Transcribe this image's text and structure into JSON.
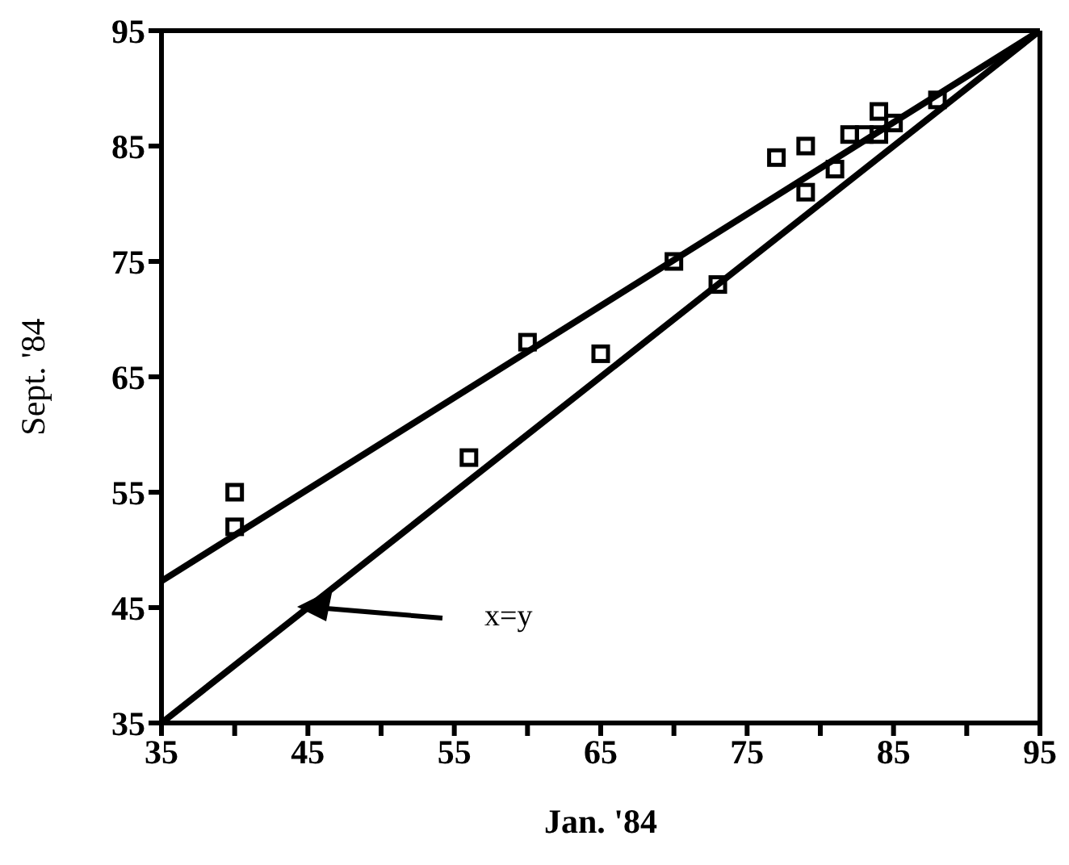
{
  "chart_data": {
    "type": "scatter",
    "xlabel": "Jan. '84",
    "ylabel": "Sept. '84",
    "xlim": [
      35,
      95
    ],
    "ylim": [
      35,
      95
    ],
    "xticks": [
      35,
      {
        "value": 40,
        "label": null
      },
      45,
      {
        "value": 50,
        "label": null
      },
      55,
      {
        "value": 60,
        "label": null
      },
      65,
      {
        "value": 70,
        "label": null
      },
      75,
      {
        "value": 80,
        "label": null
      },
      85,
      {
        "value": 90,
        "label": null
      },
      95
    ],
    "yticks": [
      35,
      45,
      55,
      65,
      75,
      85,
      95
    ],
    "series": [
      {
        "marker": "square",
        "color": "#000000",
        "x": [
          40,
          40,
          56,
          60,
          65,
          70,
          73,
          77,
          79,
          79,
          81,
          82,
          83,
          84,
          84,
          85,
          88
        ],
        "values": [
          55,
          52,
          58,
          68,
          67,
          75,
          73,
          84,
          85,
          81,
          83,
          86,
          86,
          88,
          86,
          87,
          89
        ]
      },
      {
        "type": "line",
        "color": "#000000",
        "x": [
          35,
          95
        ],
        "values": [
          47.3,
          95
        ]
      },
      {
        "type": "line",
        "color": "#000000",
        "x": [
          35,
          95
        ],
        "values": [
          35,
          95
        ]
      }
    ],
    "annotations": [
      "x=y"
    ]
  }
}
